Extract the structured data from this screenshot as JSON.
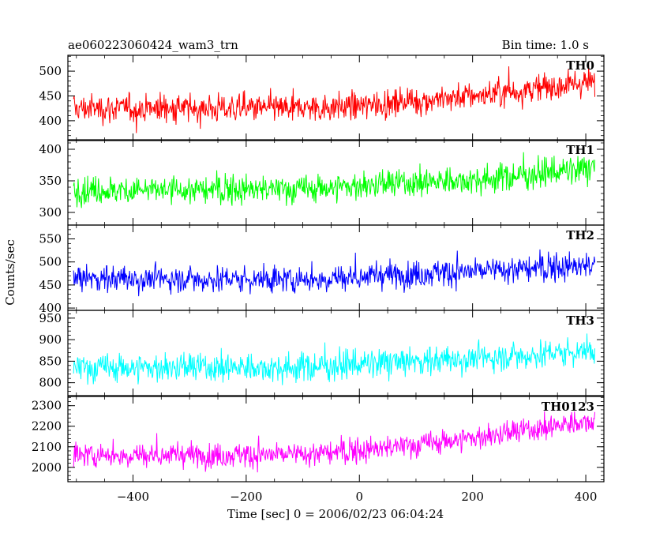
{
  "header": {
    "title": "ae060223060424_wam3_trn",
    "bin_time": "Bin time: 1.0 s"
  },
  "chart_data": {
    "type": "line",
    "ylabel": "Counts/sec",
    "xlabel": "Time [sec] 0 = 2006/02/23 06:04:24",
    "xlim": [
      -515,
      432
    ],
    "x_ticks": [
      -400,
      -200,
      0,
      200,
      400
    ],
    "x_data_range": [
      -505,
      416
    ],
    "bin_seconds": 1.0,
    "panels": [
      {
        "name": "TH0",
        "color": "#ff0000",
        "ylim": [
          360,
          532
        ],
        "yticks": [
          400,
          450,
          500
        ],
        "series_sketch": {
          "x": [
            -505,
            -300,
            -100,
            0,
            100,
            250,
            416
          ],
          "y": [
            425,
            425,
            425,
            430,
            440,
            455,
            480
          ]
        },
        "noise_amplitude": 40
      },
      {
        "name": "TH1",
        "color": "#00ff00",
        "ylim": [
          280,
          415
        ],
        "yticks": [
          300,
          350,
          400
        ],
        "series_sketch": {
          "x": [
            -505,
            -300,
            -100,
            0,
            100,
            250,
            416
          ],
          "y": [
            335,
            335,
            337,
            342,
            347,
            355,
            370
          ]
        },
        "noise_amplitude": 32
      },
      {
        "name": "TH2",
        "color": "#0000ff",
        "ylim": [
          395,
          580
        ],
        "yticks": [
          400,
          450,
          500,
          550
        ],
        "series_sketch": {
          "x": [
            -505,
            -300,
            -100,
            0,
            100,
            250,
            416
          ],
          "y": [
            465,
            463,
            462,
            468,
            475,
            482,
            492
          ]
        },
        "noise_amplitude": 42
      },
      {
        "name": "TH3",
        "color": "#00ffff",
        "ylim": [
          770,
          968
        ],
        "yticks": [
          800,
          850,
          900,
          950
        ],
        "series_sketch": {
          "x": [
            -505,
            -300,
            -100,
            0,
            100,
            250,
            416
          ],
          "y": [
            835,
            835,
            836,
            842,
            850,
            860,
            875
          ]
        },
        "noise_amplitude": 48
      },
      {
        "name": "TH0123",
        "color": "#ff00ff",
        "ylim": [
          1930,
          2345
        ],
        "yticks": [
          2000,
          2100,
          2200,
          2300
        ],
        "series_sketch": {
          "x": [
            -505,
            -300,
            -100,
            0,
            100,
            250,
            416
          ],
          "y": [
            2060,
            2060,
            2062,
            2080,
            2110,
            2160,
            2230
          ]
        },
        "noise_amplitude": 85
      }
    ]
  }
}
